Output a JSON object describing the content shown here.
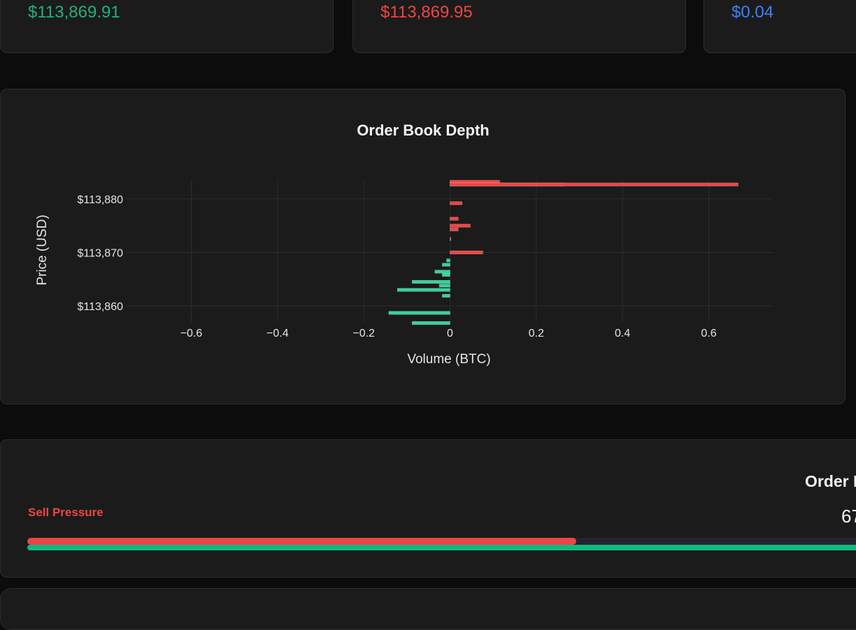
{
  "stats": {
    "best_bid": "$113,869.91",
    "best_ask": "$113,869.95",
    "spread": "$0.04"
  },
  "chart_data": {
    "type": "bar",
    "orientation": "horizontal",
    "title": "Order Book Depth",
    "xlabel": "Volume (BTC)",
    "ylabel": "Price (USD)",
    "xlim": [
      -0.75,
      0.75
    ],
    "ylim": [
      113857,
      113883.5
    ],
    "x_ticks": [
      -0.6,
      -0.4,
      -0.2,
      0,
      0.2,
      0.4,
      0.6
    ],
    "x_tick_labels": [
      "−0.6",
      "−0.4",
      "−0.2",
      "0",
      "0.2",
      "0.4",
      "0.6"
    ],
    "y_ticks": [
      113860,
      113870,
      113880
    ],
    "y_tick_labels": [
      "$113,860",
      "$113,870",
      "$113,880"
    ],
    "grid": true,
    "legend": "none",
    "series": [
      {
        "side": "ask",
        "color": "#ef4444",
        "points": [
          {
            "price": 113883.2,
            "volume": 0.115
          },
          {
            "price": 113882.7,
            "volume": 0.265
          },
          {
            "price": 113882.7,
            "volume": 0.668
          },
          {
            "price": 113879.2,
            "volume": 0.028
          },
          {
            "price": 113876.3,
            "volume": 0.019
          },
          {
            "price": 113875.0,
            "volume": 0.047
          },
          {
            "price": 113874.3,
            "volume": 0.019
          },
          {
            "price": 113872.5,
            "volume": 0.002
          },
          {
            "price": 113870.0,
            "volume": 0.076
          }
        ]
      },
      {
        "side": "bid",
        "color": "#34d399",
        "points": [
          {
            "price": 113868.5,
            "volume": -0.008
          },
          {
            "price": 113867.7,
            "volume": -0.018
          },
          {
            "price": 113866.4,
            "volume": -0.035
          },
          {
            "price": 113865.8,
            "volume": -0.018
          },
          {
            "price": 113864.5,
            "volume": -0.088
          },
          {
            "price": 113863.8,
            "volume": -0.025
          },
          {
            "price": 113863.0,
            "volume": -0.122
          },
          {
            "price": 113861.9,
            "volume": -0.018
          },
          {
            "price": 113858.7,
            "volume": -0.142
          },
          {
            "price": 113856.8,
            "volume": -0.088
          }
        ]
      }
    ]
  },
  "imbalance": {
    "title": "Order I",
    "value": "67",
    "sell_label": "Sell Pressure",
    "sell_fraction": 0.633
  }
}
